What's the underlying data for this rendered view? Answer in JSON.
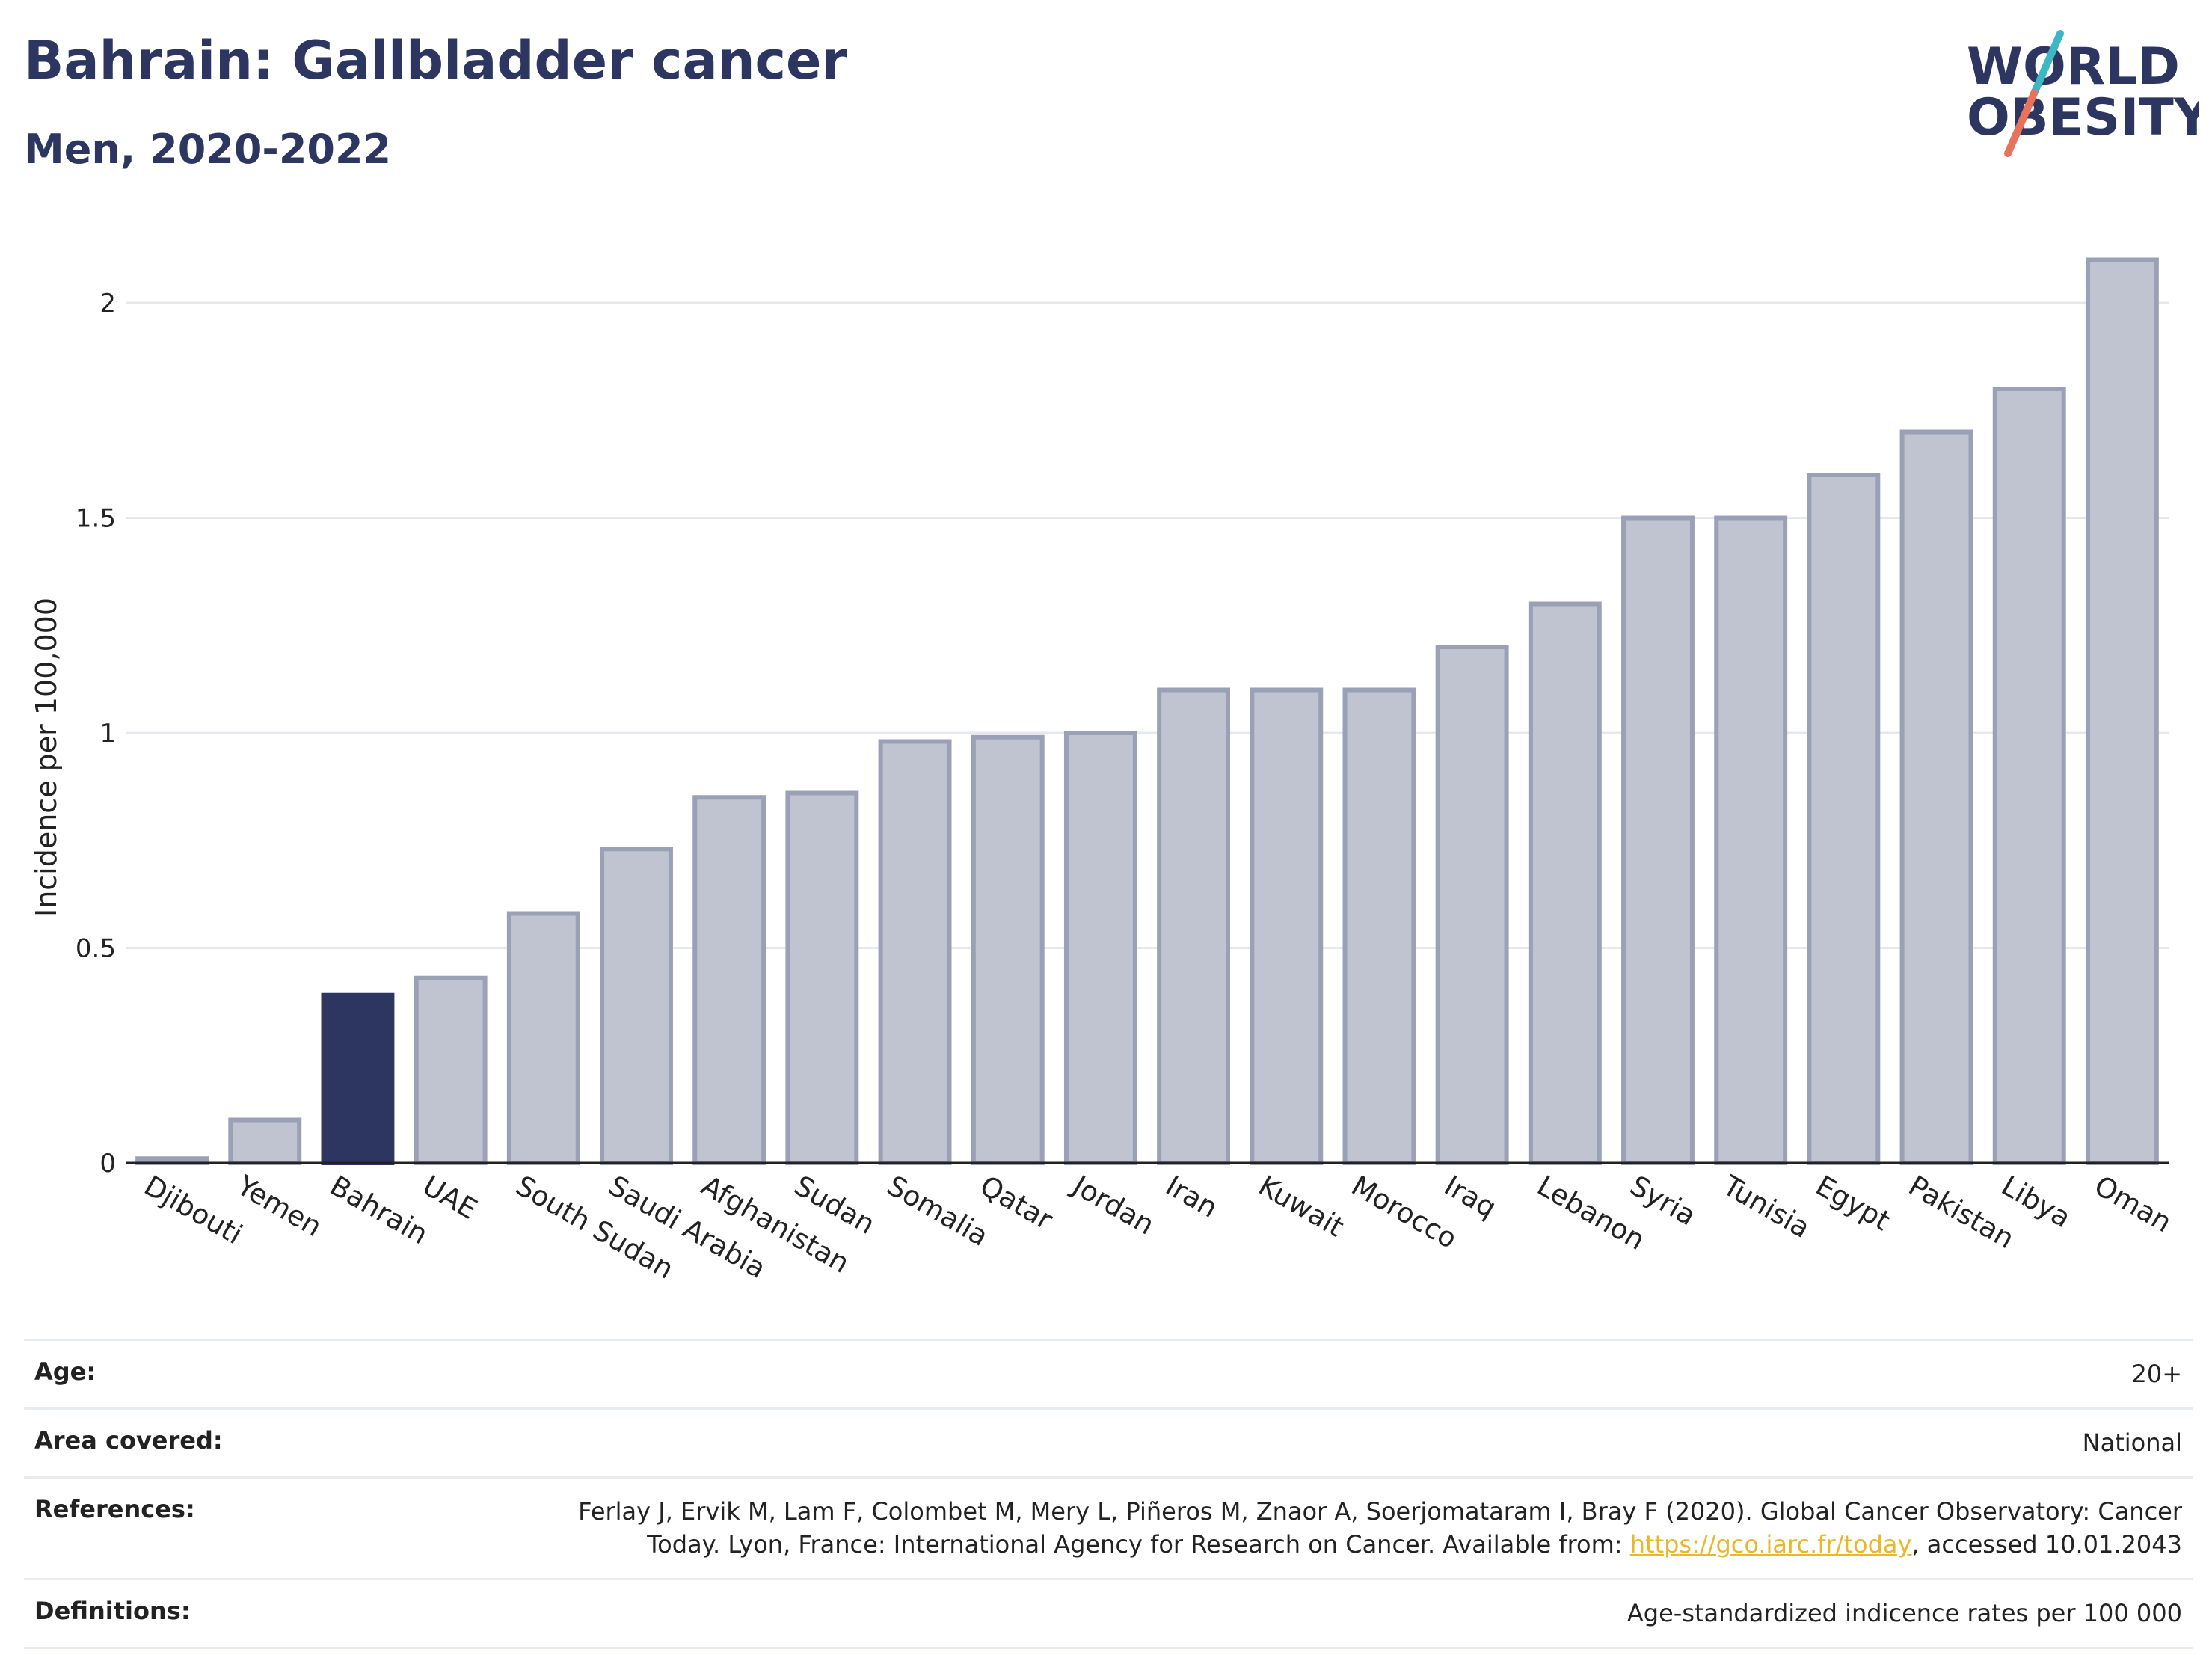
{
  "header": {
    "title": "Bahrain: Gallbladder cancer",
    "subtitle": "Men, 2020-2022"
  },
  "logo": {
    "line1": "WORLD",
    "line2": "OBESITY",
    "colors": {
      "text": "#2c3660",
      "slash_teal": "#3cb7c3",
      "slash_coral": "#e8735a"
    }
  },
  "chart_data": {
    "type": "bar",
    "ylabel": "Incidence per 100,000",
    "ylim": [
      0,
      2.2
    ],
    "yticks": [
      0,
      0.5,
      1,
      1.5,
      2
    ],
    "ytick_labels": [
      "0",
      "0.5",
      "1",
      "1.5",
      "2"
    ],
    "grid": true,
    "highlight": "Bahrain",
    "colors": {
      "bar": "#c0c3d0",
      "bar_edge": "#9aa0b5",
      "highlight": "#2c3660"
    },
    "categories": [
      "Djibouti",
      "Yemen",
      "Bahrain",
      "UAE",
      "South Sudan",
      "Saudi Arabia",
      "Afghanistan",
      "Sudan",
      "Somalia",
      "Qatar",
      "Jordan",
      "Iran",
      "Kuwait",
      "Morocco",
      "Iraq",
      "Lebanon",
      "Syria",
      "Tunisia",
      "Egypt",
      "Pakistan",
      "Libya",
      "Oman"
    ],
    "values": [
      0.01,
      0.1,
      0.39,
      0.43,
      0.58,
      0.73,
      0.85,
      0.86,
      0.98,
      0.99,
      1.0,
      1.1,
      1.1,
      1.1,
      1.2,
      1.3,
      1.5,
      1.5,
      1.6,
      1.7,
      1.8,
      2.1
    ]
  },
  "meta": {
    "age_label": "Age:",
    "age_value": "20+",
    "area_label": "Area covered:",
    "area_value": "National",
    "references_label": "References:",
    "references_text_before": "Ferlay J, Ervik M, Lam F, Colombet M, Mery L, Piñeros M, Znaor A, Soerjomataram I, Bray F (2020). Global Cancer Observatory: Cancer Today. Lyon, France: International Agency for Research on Cancer. Available from: ",
    "references_link": "https://gco.iarc.fr/today",
    "references_text_after": ", accessed 10.01.2043",
    "definitions_label": "Definitions:",
    "definitions_value": "Age-standardized indicence rates per 100 000"
  }
}
